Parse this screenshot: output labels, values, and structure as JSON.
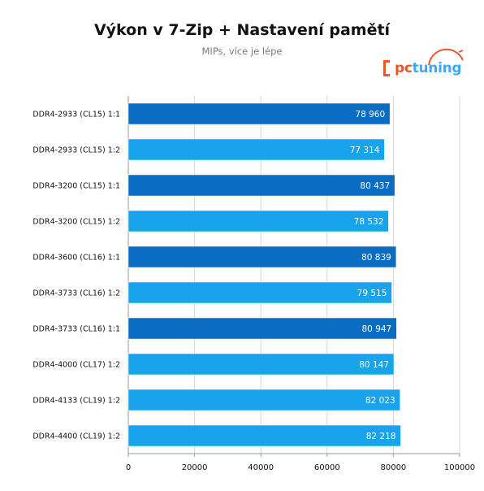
{
  "chart_data": {
    "type": "bar",
    "orientation": "horizontal",
    "title": "Výkon v 7-Zip + Nastavení pamětí",
    "subtitle": "MIPs, více je lépe",
    "categories": [
      "DDR4-2933 (CL15) 1:1",
      "DDR4-2933 (CL15) 1:2",
      "DDR4-3200 (CL15) 1:1",
      "DDR4-3200 (CL15) 1:2",
      "DDR4-3600 (CL16) 1:1",
      "DDR4-3733 (CL16) 1:2",
      "DDR4-3733 (CL16) 1:1",
      "DDR4-4000 (CL17) 1:2",
      "DDR4-4133 (CL19) 1:2",
      "DDR4-4400 (CL19) 1:2"
    ],
    "values": [
      78960,
      77314,
      80437,
      78532,
      80839,
      79515,
      80947,
      80147,
      82023,
      82218
    ],
    "value_labels": [
      "78 960",
      "77 314",
      "80 437",
      "78 532",
      "80 839",
      "79 515",
      "80 947",
      "80 147",
      "82 023",
      "82 218"
    ],
    "xlim": [
      0,
      100000
    ],
    "xticks": [
      0,
      20000,
      40000,
      60000,
      80000,
      100000
    ],
    "xtick_labels": [
      "0",
      "20000",
      "40000",
      "60000",
      "80000",
      "100000"
    ],
    "grid": true,
    "bar_colors": [
      "#0a6dc2",
      "#19a3ea",
      "#0a6dc2",
      "#19a3ea",
      "#0a6dc2",
      "#19a3ea",
      "#0a6dc2",
      "#19a3ea",
      "#19a3ea",
      "#19a3ea"
    ]
  },
  "logo": {
    "pc": "pc",
    "tuning": "tuning"
  }
}
